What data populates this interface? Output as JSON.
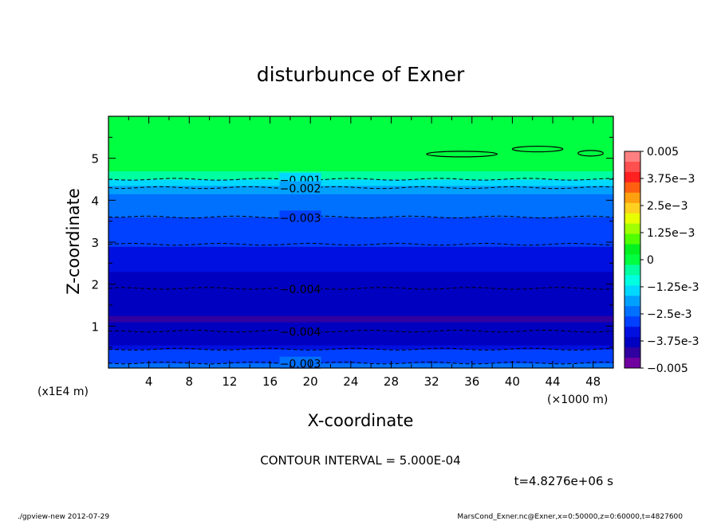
{
  "chart_data": {
    "type": "heatmap",
    "title": "disturbunce of Exner",
    "xlabel": "X-coordinate",
    "ylabel": "Z-coordinate",
    "x_scale_label": "(×1000 m)",
    "y_scale_label": "(x1E4 m)",
    "xlim": [
      0,
      50
    ],
    "ylim": [
      0,
      6
    ],
    "x_ticks": [
      4,
      8,
      12,
      16,
      20,
      24,
      28,
      32,
      36,
      40,
      44,
      48
    ],
    "y_ticks": [
      1,
      2,
      3,
      4,
      5
    ],
    "colorbar": {
      "range": [
        -0.005,
        0.005
      ],
      "tick_labels": [
        "0.005",
        "3.75e-3",
        "2.5e-3",
        "1.25e-3",
        "0",
        "-1.25e-3",
        "-2.5e-3",
        "-3.75e-3",
        "-0.005"
      ],
      "tick_values": [
        0.005,
        0.00375,
        0.0025,
        0.00125,
        0,
        -0.00125,
        -0.0025,
        -0.00375,
        -0.005
      ],
      "colors": [
        "#ff8080",
        "#ff5050",
        "#ff2020",
        "#ff6010",
        "#ffa010",
        "#ffd020",
        "#e8ff00",
        "#a0ff00",
        "#50ff00",
        "#00f020",
        "#00ff40",
        "#00ffa0",
        "#00ffe0",
        "#00d8ff",
        "#00a0ff",
        "#0070ff",
        "#0040ff",
        "#0010e0",
        "#0000c0",
        "#3000a0",
        "#7000a0"
      ]
    },
    "bands": [
      {
        "z0": 0.0,
        "z1": 0.12,
        "value": -0.0025
      },
      {
        "z0": 0.12,
        "z1": 0.2,
        "value": -0.003
      },
      {
        "z0": 0.2,
        "z1": 0.45,
        "value": -0.003
      },
      {
        "z0": 0.45,
        "z1": 0.55,
        "value": -0.0035
      },
      {
        "z0": 0.55,
        "z1": 0.8,
        "value": -0.004
      },
      {
        "z0": 0.8,
        "z1": 0.92,
        "value": -0.004
      },
      {
        "z0": 0.92,
        "z1": 1.1,
        "value": -0.004
      },
      {
        "z0": 1.1,
        "z1": 1.25,
        "value": -0.0045
      },
      {
        "z0": 1.25,
        "z1": 1.9,
        "value": -0.004
      },
      {
        "z0": 1.9,
        "z1": 2.3,
        "value": -0.004
      },
      {
        "z0": 2.3,
        "z1": 2.9,
        "value": -0.0035
      },
      {
        "z0": 2.9,
        "z1": 3.3,
        "value": -0.003
      },
      {
        "z0": 3.3,
        "z1": 3.6,
        "value": -0.0028
      },
      {
        "z0": 3.6,
        "z1": 3.9,
        "value": -0.0025
      },
      {
        "z0": 3.9,
        "z1": 4.15,
        "value": -0.0022
      },
      {
        "z0": 4.15,
        "z1": 4.35,
        "value": -0.0018
      },
      {
        "z0": 4.35,
        "z1": 4.5,
        "value": -0.0012
      },
      {
        "z0": 4.5,
        "z1": 4.7,
        "value": -0.0006
      },
      {
        "z0": 4.7,
        "z1": 6.0,
        "value": 0.0
      }
    ],
    "contours": [
      {
        "z": 4.5,
        "label": "-0.001",
        "label_x": 19
      },
      {
        "z": 4.3,
        "label": "-0.002",
        "label_x": 19
      },
      {
        "z": 3.6,
        "label": "-0.003",
        "label_x": 19
      },
      {
        "z": 2.95,
        "label": "",
        "label_x": null
      },
      {
        "z": 1.9,
        "label": "-0.004",
        "label_x": 19
      },
      {
        "z": 0.88,
        "label": "-0.004",
        "label_x": 19
      },
      {
        "z": 0.45,
        "label": "",
        "label_x": null
      },
      {
        "z": 0.12,
        "label": "-0.003",
        "label_x": 19
      }
    ],
    "closed_contours": [
      {
        "x0": 31.5,
        "x1": 38.5,
        "z": 5.1
      },
      {
        "x0": 40.0,
        "x1": 45.0,
        "z": 5.22
      },
      {
        "x0": 46.5,
        "x1": 49.0,
        "z": 5.12
      }
    ]
  },
  "contour_interval": "CONTOUR INTERVAL = 5.000E-04",
  "time_label": "t=4.8276e+06 s",
  "footer_left": "./gpview-new   2012-07-29",
  "footer_right": "MarsCond_Exner.nc@Exner,x=0:50000,z=0:60000,t=4827600"
}
